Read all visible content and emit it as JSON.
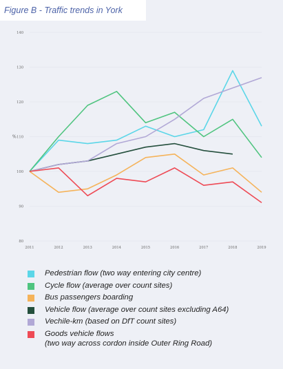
{
  "figure_title": "Figure B - Traffic trends in York",
  "chart_data": {
    "type": "line",
    "title": "Figure B - Traffic trends in York",
    "xlabel": "",
    "ylabel": "%",
    "x": [
      2011,
      2012,
      2013,
      2014,
      2015,
      2016,
      2017,
      2018,
      2019
    ],
    "ylim": [
      80,
      140
    ],
    "yticks": [
      80,
      90,
      100,
      110,
      120,
      130,
      140
    ],
    "grid": true,
    "legend_position": "bottom",
    "series": [
      {
        "name": "Pedestrian flow (two way entering city centre)",
        "color": "#5bd6e8",
        "values": [
          100,
          109,
          108,
          109,
          113,
          110,
          112,
          129,
          113
        ]
      },
      {
        "name": "Cycle flow (average over count sites)",
        "color": "#4fc47f",
        "values": [
          100,
          110,
          119,
          123,
          114,
          117,
          110,
          115,
          104
        ]
      },
      {
        "name": "Bus passengers boarding",
        "color": "#f5b35a",
        "values": [
          100,
          94,
          95,
          99,
          104,
          105,
          99,
          101,
          94
        ]
      },
      {
        "name": "Vehicle flow (average over count sites excluding A64)",
        "color": "#244f3d",
        "values": [
          100,
          102,
          103,
          105,
          107,
          108,
          106,
          105,
          null
        ]
      },
      {
        "name": "Vechile-km (based on DfT count sites)",
        "color": "#b1a8d6",
        "values": [
          100,
          102,
          103,
          108,
          110,
          115,
          121,
          124,
          127
        ]
      },
      {
        "name": "Goods vehicle flows",
        "name_line2": "(two way across cordon inside Outer Ring Road)",
        "color": "#ee4a55",
        "values": [
          100,
          101,
          93,
          98,
          97,
          101,
          96,
          97,
          91
        ]
      }
    ]
  }
}
